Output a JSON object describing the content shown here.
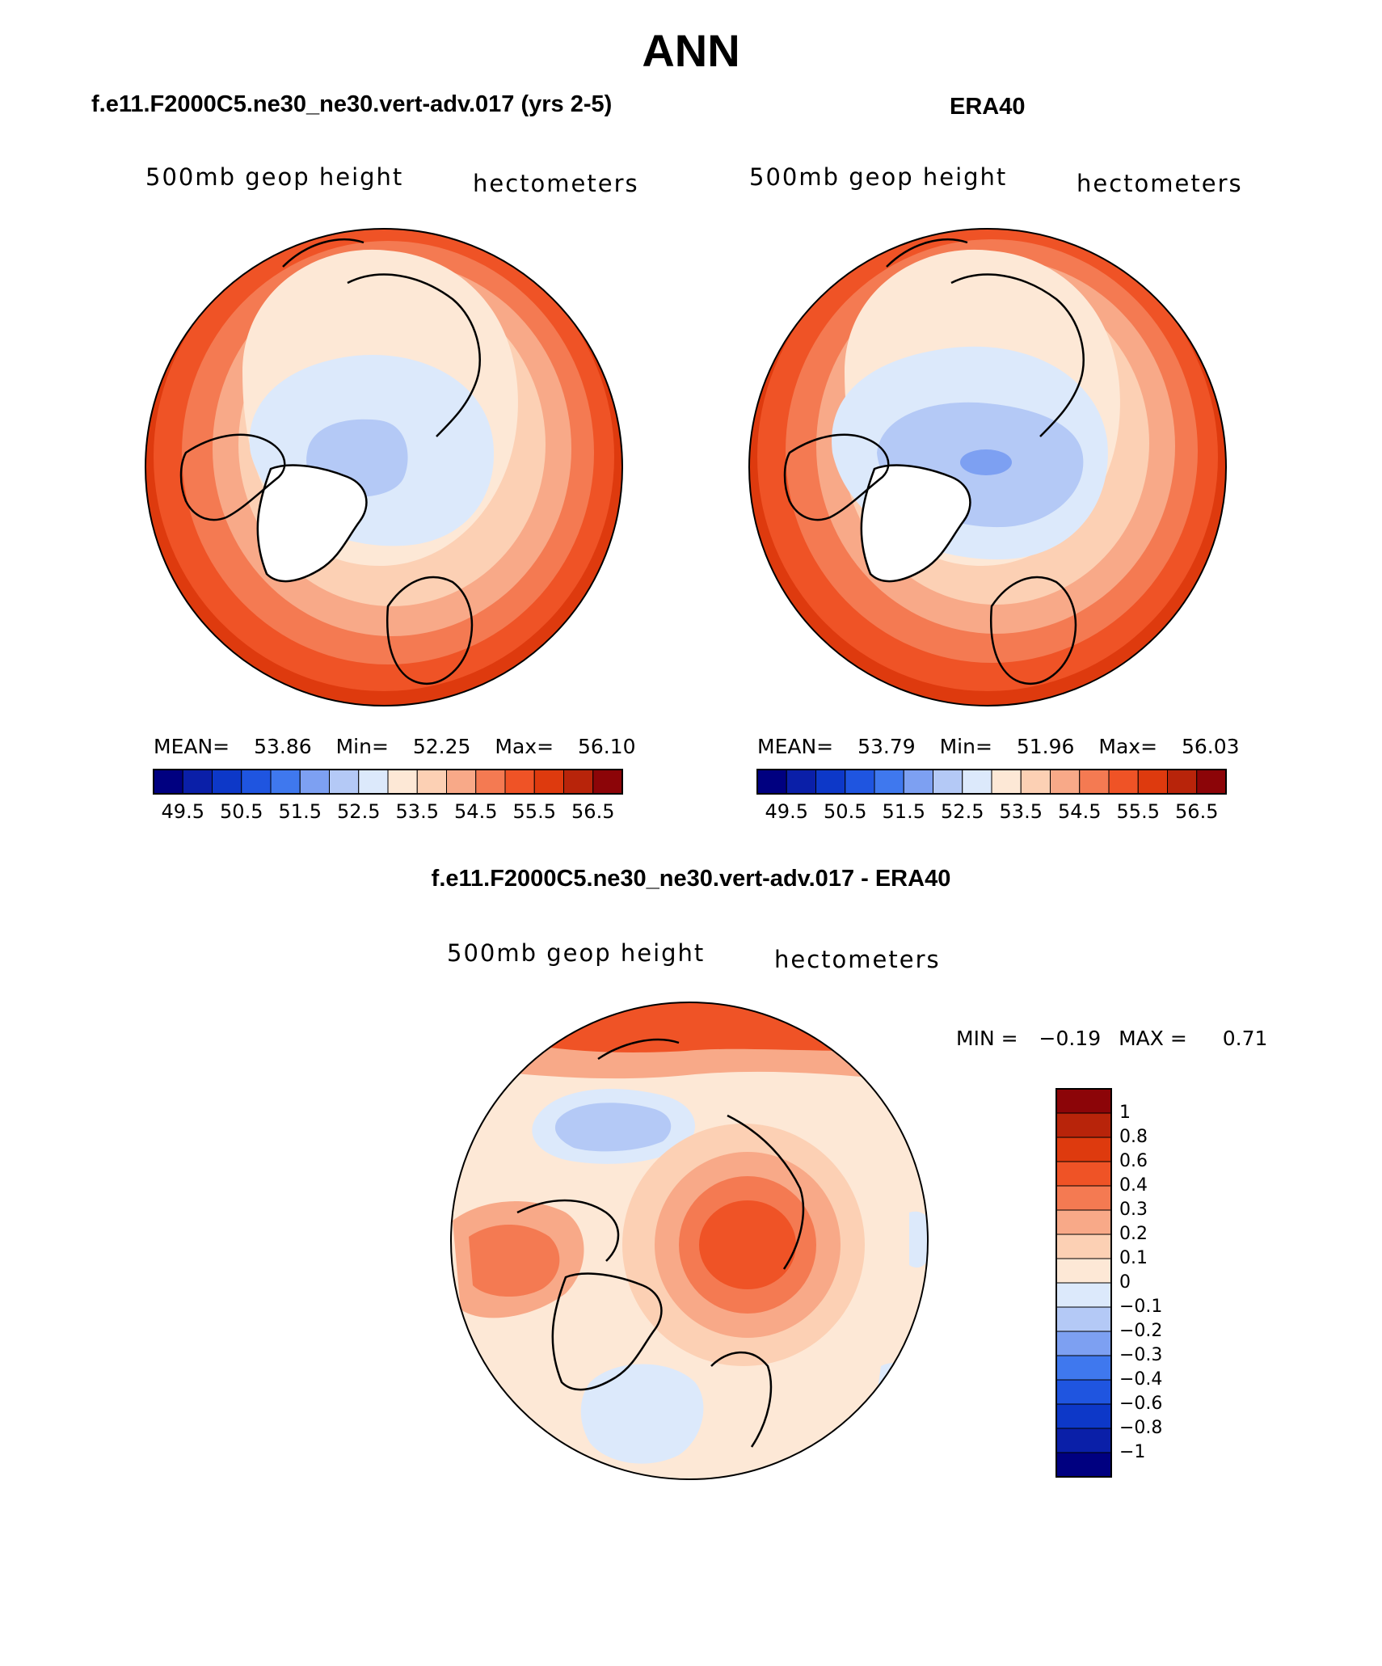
{
  "title": "ANN",
  "panels": [
    {
      "id": "model",
      "title": "f.e11.F2000C5.ne30_ne30.vert-adv.017 (yrs 2-5)",
      "left_label": "500mb  geop  height",
      "right_label": "hectometers",
      "stats": {
        "mean_label": "MEAN=",
        "mean": "53.86",
        "min_label": "Min=",
        "min": "52.25",
        "max_label": "Max=",
        "max": "56.10"
      }
    },
    {
      "id": "obs",
      "title": "ERA40",
      "left_label": "500mb  geop  height",
      "right_label": "hectometers",
      "stats": {
        "mean_label": "MEAN=",
        "mean": "53.79",
        "min_label": "Min=",
        "min": "51.96",
        "max_label": "Max=",
        "max": "56.03"
      }
    },
    {
      "id": "diff",
      "title": "f.e11.F2000C5.ne30_ne30.vert-adv.017 - ERA40",
      "left_label": "500mb  geop  height",
      "right_label": "hectometers",
      "stats": {
        "min_label": "MIN =",
        "min": "−0.19",
        "max_label": "MAX =",
        "max": "0.71"
      }
    }
  ],
  "colorbar_main": {
    "colors": [
      "#000080",
      "#0a1fa8",
      "#0d38c8",
      "#1f55e0",
      "#3f78ee",
      "#7da0f2",
      "#b4c9f6",
      "#dce9fb",
      "#fde8d6",
      "#fcd0b4",
      "#f8a988",
      "#f47a52",
      "#ef5326",
      "#de3a0e",
      "#b8240a",
      "#8c0508"
    ],
    "labels": [
      "49.5",
      "50.5",
      "51.5",
      "52.5",
      "53.5",
      "54.5",
      "55.5",
      "56.5"
    ]
  },
  "colorbar_diff": {
    "colors": [
      "#8c0508",
      "#b8240a",
      "#de3a0e",
      "#ef5326",
      "#f47a52",
      "#f8a988",
      "#fcd0b4",
      "#fde8d6",
      "#dce9fb",
      "#b4c9f6",
      "#7da0f2",
      "#3f78ee",
      "#1f55e0",
      "#0d38c8",
      "#0a1fa8",
      "#000080"
    ],
    "labels": [
      "1",
      "0.8",
      "0.6",
      "0.4",
      "0.3",
      "0.2",
      "0.1",
      "0",
      "−0.1",
      "−0.2",
      "−0.3",
      "−0.4",
      "−0.6",
      "−0.8",
      "−1"
    ]
  },
  "map_colors": {
    "c49": "#7da0f2",
    "c51": "#b4c9f6",
    "c52": "#dce9fb",
    "c53": "#fde8d6",
    "c54": "#fcd0b4",
    "c545": "#f8a988",
    "c55": "#f47a52",
    "c555": "#ef5326",
    "c56": "#de3a0e"
  }
}
